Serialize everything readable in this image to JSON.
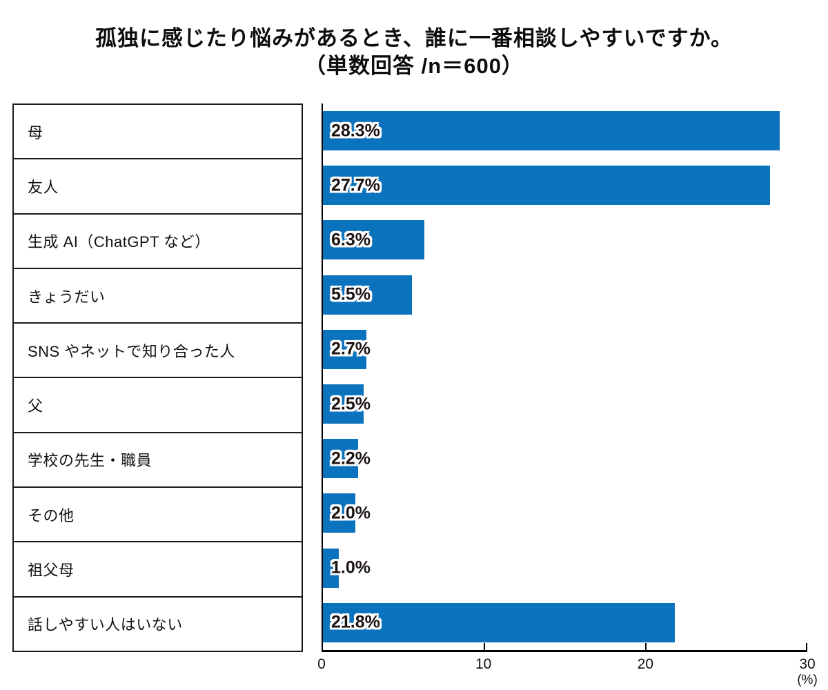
{
  "title": {
    "line1": "孤独に感じたり悩みがあるとき、誰に一番相談しやすいですか。",
    "line2": "（単数回答 /n＝600）"
  },
  "chart_data": {
    "type": "bar",
    "orientation": "horizontal",
    "title": "孤独に感じたり悩みがあるとき、誰に一番相談しやすいですか。",
    "subtitle": "（単数回答 /n＝600）",
    "categories": [
      "母",
      "友人",
      "生成 AI（ChatGPT など）",
      "きょうだい",
      "SNS やネットで知り合った人",
      "父",
      "学校の先生・職員",
      "その他",
      "祖父母",
      "話しやすい人はいない"
    ],
    "values": [
      28.3,
      27.7,
      6.3,
      5.5,
      2.7,
      2.5,
      2.2,
      2.0,
      1.0,
      21.8
    ],
    "value_labels": [
      "28.3%",
      "27.7%",
      "6.3%",
      "5.5%",
      "2.7%",
      "2.5%",
      "2.2%",
      "2.0%",
      "1.0%",
      "21.8%"
    ],
    "xlim": [
      0,
      30
    ],
    "x_ticks": [
      "0",
      "10",
      "20",
      "30"
    ],
    "x_tick_positions": [
      0,
      33.3333,
      66.6667,
      100
    ],
    "x_unit": "(%)",
    "bar_color": "#0b72bd",
    "grid": false,
    "legend": false
  }
}
